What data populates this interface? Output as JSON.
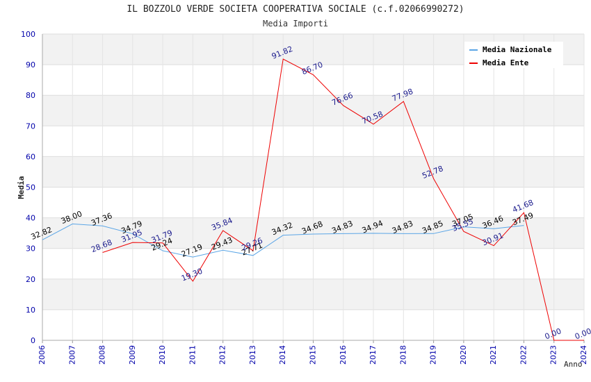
{
  "chart_data": {
    "type": "line",
    "title": "IL BOZZOLO VERDE SOCIETA COOPERATIVA SOCIALE (c.f.02066990272)",
    "subtitle": "Media Importi",
    "xlabel": "Anno",
    "ylabel": "Media",
    "ylim": [
      0,
      100
    ],
    "yticks": [
      0,
      10,
      20,
      30,
      40,
      50,
      60,
      70,
      80,
      90,
      100
    ],
    "categories": [
      "2006",
      "2007",
      "2008",
      "2009",
      "2010",
      "2011",
      "2012",
      "2013",
      "2014",
      "2015",
      "2016",
      "2017",
      "2018",
      "2019",
      "2020",
      "2021",
      "2022",
      "2023",
      "2024"
    ],
    "grid": true,
    "legend_position": "top-right",
    "series": [
      {
        "name": "Media Nazionale",
        "color": "#5aa5e6",
        "label_color": "#000000",
        "values": [
          32.82,
          38.0,
          37.36,
          34.79,
          29.24,
          27.19,
          29.43,
          27.71,
          34.32,
          34.68,
          34.83,
          34.94,
          34.83,
          34.85,
          37.05,
          36.46,
          37.49,
          null,
          null
        ],
        "labels": [
          "32.82",
          "38.00",
          "37.36",
          "34.79",
          "29.24",
          "27.19",
          "29.43",
          "27.71",
          "34.32",
          "34.68",
          "34.83",
          "34.94",
          "34.83",
          "34.85",
          "37.05",
          "36.46",
          "37.49",
          "",
          ""
        ]
      },
      {
        "name": "Media Ente",
        "color": "#ee0000",
        "label_color": "#1a1a8c",
        "values": [
          null,
          null,
          28.68,
          31.95,
          31.79,
          19.3,
          35.84,
          29.26,
          91.82,
          86.7,
          76.66,
          70.58,
          77.98,
          52.78,
          35.55,
          30.91,
          41.68,
          0.0,
          0.0
        ],
        "labels": [
          "",
          "",
          "28.68",
          "31.95",
          "31.79",
          "19.30",
          "35.84",
          "29.26",
          "91.82",
          "86.70",
          "76.66",
          "70.58",
          "77.98",
          "52.78",
          "35.55",
          "30.91",
          "41.68",
          "0.00",
          "0.00"
        ]
      }
    ]
  }
}
